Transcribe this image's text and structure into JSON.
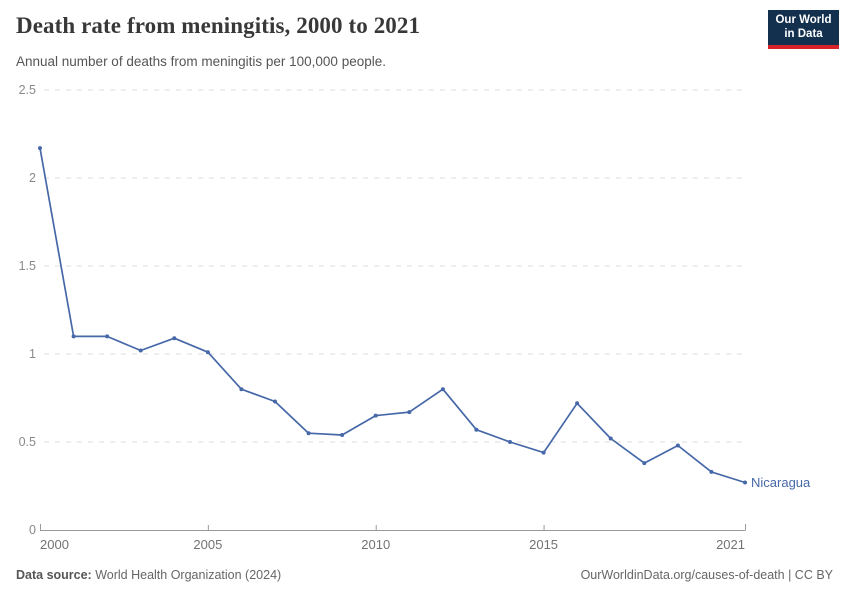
{
  "header": {
    "title": "Death rate from meningitis, 2000 to 2021",
    "subtitle": "Annual number of deaths from meningitis per 100,000 people."
  },
  "logo": {
    "line1": "Our World",
    "line2": "in Data",
    "bg_color": "#13304f",
    "stripe_color": "#d8232a"
  },
  "chart_data": {
    "type": "line",
    "title": "Death rate from meningitis, 2000 to 2021",
    "subtitle": "Annual number of deaths from meningitis per 100,000 people.",
    "xlabel": "",
    "ylabel": "",
    "xlim": [
      2000,
      2021
    ],
    "ylim": [
      0,
      2.5
    ],
    "x_ticks": [
      2000,
      2005,
      2010,
      2015,
      2021
    ],
    "y_ticks": [
      0,
      0.5,
      1,
      1.5,
      2,
      2.5
    ],
    "grid": "horizontal-dashed",
    "legend_position": "end-of-line-label",
    "series": [
      {
        "name": "Nicaragua",
        "color": "#4668a8",
        "x": [
          2000,
          2001,
          2002,
          2003,
          2004,
          2005,
          2006,
          2007,
          2008,
          2009,
          2010,
          2011,
          2012,
          2013,
          2014,
          2015,
          2016,
          2017,
          2018,
          2019,
          2020,
          2021
        ],
        "values": [
          2.17,
          1.1,
          1.1,
          1.02,
          1.09,
          1.01,
          0.8,
          0.73,
          0.55,
          0.54,
          0.65,
          0.67,
          0.8,
          0.57,
          0.5,
          0.44,
          0.72,
          0.52,
          0.38,
          0.48,
          0.33,
          0.27
        ]
      }
    ],
    "colors": {
      "grid": "#dddddd",
      "axis": "#9a9a9a",
      "y_tick_label": "#8a8a8a",
      "x_tick_label": "#737373"
    }
  },
  "footer": {
    "source_label": "Data source:",
    "source_text": " World Health Organization (2024)",
    "credit_text": "OurWorldinData.org/causes-of-death | CC BY"
  }
}
